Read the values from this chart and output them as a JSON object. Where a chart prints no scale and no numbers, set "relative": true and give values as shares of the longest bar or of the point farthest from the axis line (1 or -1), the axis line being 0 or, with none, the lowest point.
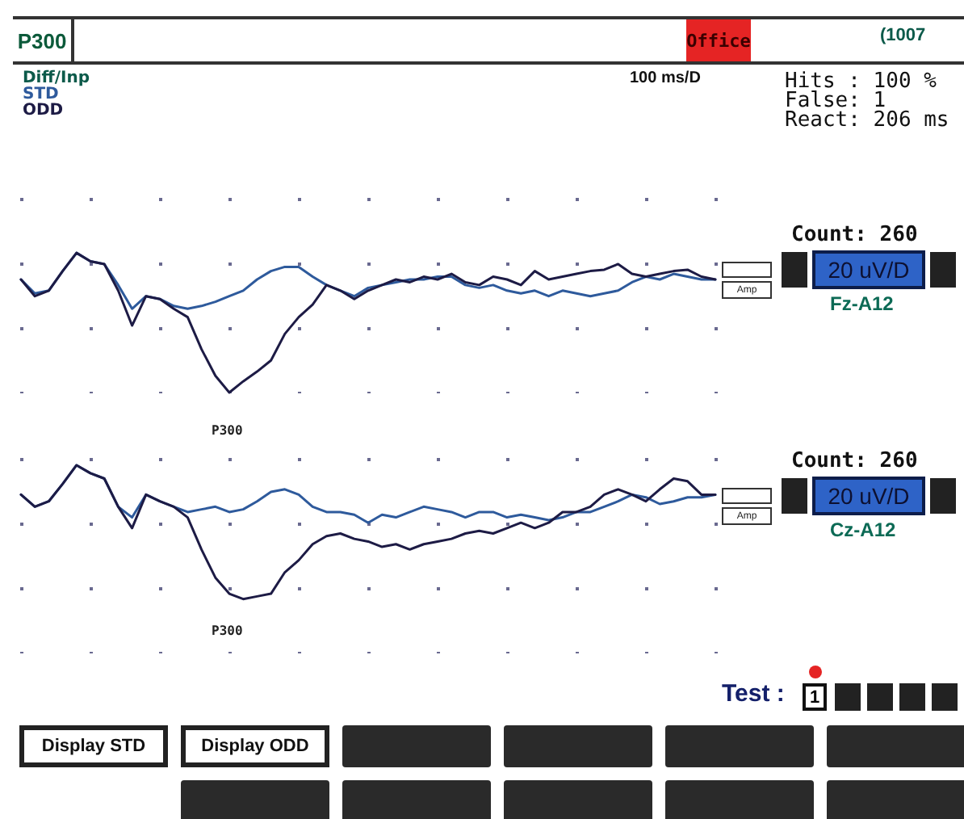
{
  "chart_data": [
    {
      "type": "line",
      "title": "P300",
      "legend_title": "Diff/Inp",
      "legend": "top left",
      "grid": "x",
      "tick_labels": false,
      "relative": true,
      "categories": [
        null,
        null,
        null,
        null,
        null,
        null,
        null,
        null,
        null,
        null,
        null,
        null,
        null,
        null,
        null,
        null,
        null,
        null,
        null,
        null,
        null,
        null,
        null,
        null,
        null,
        null,
        null,
        null,
        null,
        null,
        null,
        null,
        null,
        null,
        null,
        null,
        null,
        null,
        null,
        null,
        null,
        null,
        null,
        null,
        null,
        null,
        null,
        null,
        null,
        null,
        null
      ],
      "series": [
        {
          "name": "STD",
          "color": "#2e5a9c",
          "values": [
            0.81,
            0.71,
            0.73,
            0.87,
            1,
            0.94,
            0.92,
            0.77,
            0.6,
            0.69,
            0.67,
            0.62,
            0.6,
            0.62,
            0.65,
            0.69,
            0.73,
            0.81,
            0.87,
            0.9,
            0.9,
            0.83,
            0.77,
            0.73,
            0.69,
            0.75,
            0.77,
            0.79,
            0.81,
            0.81,
            0.83,
            0.83,
            0.77,
            0.75,
            0.77,
            0.73,
            0.71,
            0.73,
            0.69,
            0.73,
            0.71,
            0.69,
            0.71,
            0.73,
            0.79,
            0.83,
            0.81,
            0.85,
            0.83,
            0.81,
            0.81
          ]
        },
        {
          "name": "ODD",
          "color": "#1d1b45",
          "values": [
            0.81,
            0.69,
            0.73,
            0.87,
            1,
            0.94,
            0.92,
            0.73,
            0.48,
            0.69,
            0.67,
            0.6,
            0.54,
            0.31,
            0.12,
            0,
            0.08,
            0.15,
            0.23,
            0.42,
            0.54,
            0.63,
            0.77,
            0.73,
            0.67,
            0.73,
            0.77,
            0.81,
            0.79,
            0.83,
            0.81,
            0.85,
            0.79,
            0.77,
            0.83,
            0.81,
            0.77,
            0.87,
            0.81,
            0.83,
            0.85,
            0.87,
            0.88,
            0.92,
            0.85,
            0.83,
            0.85,
            0.87,
            0.88,
            0.83,
            0.81
          ]
        }
      ],
      "annotations": [
        "Office",
        "(1007",
        "100 ms/D",
        "Hits : 100 %",
        "False:   1",
        "React: 206 ms",
        "Count: 260",
        "20 uV/D",
        "Fz-A12",
        "Amp",
        "P300"
      ]
    },
    {
      "type": "line",
      "grid": "x",
      "tick_labels": false,
      "relative": true,
      "categories": [
        null,
        null,
        null,
        null,
        null,
        null,
        null,
        null,
        null,
        null,
        null,
        null,
        null,
        null,
        null,
        null,
        null,
        null,
        null,
        null,
        null,
        null,
        null,
        null,
        null,
        null,
        null,
        null,
        null,
        null,
        null,
        null,
        null,
        null,
        null,
        null,
        null,
        null,
        null,
        null,
        null,
        null,
        null,
        null,
        null,
        null,
        null,
        null,
        null,
        null,
        null
      ],
      "series": [
        {
          "color": "#2e5a9c",
          "values": [
            0.78,
            0.69,
            0.73,
            0.86,
            1,
            0.94,
            0.9,
            0.69,
            0.61,
            0.78,
            0.73,
            0.69,
            0.65,
            0.67,
            0.69,
            0.65,
            0.67,
            0.73,
            0.8,
            0.82,
            0.78,
            0.69,
            0.65,
            0.65,
            0.63,
            0.57,
            0.63,
            0.61,
            0.65,
            0.69,
            0.67,
            0.65,
            0.61,
            0.65,
            0.65,
            0.61,
            0.63,
            0.61,
            0.59,
            0.61,
            0.65,
            0.65,
            0.69,
            0.73,
            0.78,
            0.76,
            0.71,
            0.73,
            0.76,
            0.76,
            0.78
          ]
        },
        {
          "color": "#1d1b45",
          "values": [
            0.78,
            0.69,
            0.73,
            0.86,
            1,
            0.94,
            0.9,
            0.69,
            0.53,
            0.78,
            0.73,
            0.69,
            0.61,
            0.37,
            0.16,
            0.04,
            0,
            0.02,
            0.04,
            0.2,
            0.29,
            0.41,
            0.47,
            0.49,
            0.45,
            0.43,
            0.39,
            0.41,
            0.37,
            0.41,
            0.43,
            0.45,
            0.49,
            0.51,
            0.49,
            0.53,
            0.57,
            0.53,
            0.57,
            0.65,
            0.65,
            0.69,
            0.78,
            0.82,
            0.78,
            0.73,
            0.82,
            0.9,
            0.88,
            0.78,
            0.78
          ]
        }
      ],
      "annotations": [
        "Count: 260",
        "20 uV/D",
        "Cz-A12",
        "Amp",
        "P300",
        "Test :",
        "1",
        "Display STD",
        "Display ODD"
      ]
    }
  ]
}
